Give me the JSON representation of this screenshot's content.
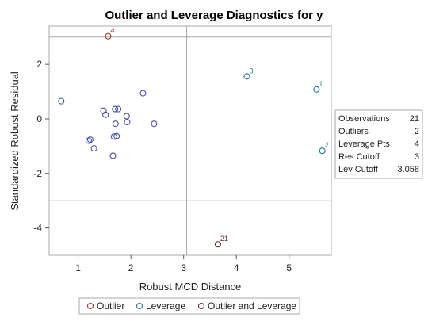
{
  "colors": {
    "normal": "#4a4fb0",
    "outlier": "#a23a2c",
    "leverage": "#1f7a8c",
    "outlier_and_leverage": "#6b2a2a",
    "ref_line": "#a8a8a8",
    "frame": "#a8a8a8"
  },
  "chart_data": {
    "type": "scatter",
    "title": "Outlier and Leverage Diagnostics for y",
    "xlabel": "Robust MCD Distance",
    "ylabel": "Standardized Robust Residual",
    "xlim": [
      0.45,
      5.8
    ],
    "ylim": [
      -5.0,
      3.4
    ],
    "xticks": [
      1,
      2,
      3,
      4,
      5
    ],
    "yticks": [
      -4,
      -2,
      0,
      2
    ],
    "ref_lines": {
      "y": [
        3,
        -3
      ],
      "x": [
        3.058
      ]
    },
    "grid": false,
    "points": [
      {
        "x": 5.52,
        "y": 1.08,
        "type": "leverage",
        "label": "1"
      },
      {
        "x": 5.63,
        "y": -1.17,
        "type": "leverage",
        "label": "2"
      },
      {
        "x": 4.2,
        "y": 1.56,
        "type": "leverage",
        "label": "3"
      },
      {
        "x": 1.57,
        "y": 3.03,
        "type": "outlier",
        "label": "4"
      },
      {
        "x": 3.65,
        "y": -4.6,
        "type": "outlier_and_leverage",
        "label": "21"
      },
      {
        "x": 0.68,
        "y": 0.65,
        "type": "normal",
        "label": ""
      },
      {
        "x": 1.48,
        "y": 0.3,
        "type": "normal",
        "label": ""
      },
      {
        "x": 1.52,
        "y": 0.15,
        "type": "normal",
        "label": ""
      },
      {
        "x": 1.2,
        "y": -0.8,
        "type": "normal",
        "label": ""
      },
      {
        "x": 1.23,
        "y": -0.76,
        "type": "normal",
        "label": ""
      },
      {
        "x": 1.3,
        "y": -1.08,
        "type": "normal",
        "label": ""
      },
      {
        "x": 1.66,
        "y": -1.35,
        "type": "normal",
        "label": ""
      },
      {
        "x": 1.7,
        "y": 0.36,
        "type": "normal",
        "label": ""
      },
      {
        "x": 1.76,
        "y": 0.36,
        "type": "normal",
        "label": ""
      },
      {
        "x": 1.71,
        "y": -0.18,
        "type": "normal",
        "label": ""
      },
      {
        "x": 1.68,
        "y": -0.65,
        "type": "normal",
        "label": ""
      },
      {
        "x": 1.73,
        "y": -0.63,
        "type": "normal",
        "label": ""
      },
      {
        "x": 1.92,
        "y": 0.1,
        "type": "normal",
        "label": ""
      },
      {
        "x": 1.93,
        "y": -0.12,
        "type": "normal",
        "label": ""
      },
      {
        "x": 2.23,
        "y": 0.94,
        "type": "normal",
        "label": ""
      },
      {
        "x": 2.44,
        "y": -0.18,
        "type": "normal",
        "label": ""
      }
    ],
    "stats": [
      {
        "name": "Observations",
        "value": "21"
      },
      {
        "name": "Outliers",
        "value": "2"
      },
      {
        "name": "Leverage Pts",
        "value": "4"
      },
      {
        "name": "Res Cutoff",
        "value": "3"
      },
      {
        "name": "Lev Cutoff",
        "value": "3.058"
      }
    ],
    "legend_placement": "bottom",
    "legend": [
      {
        "type": "outlier",
        "label": "Outlier"
      },
      {
        "type": "leverage",
        "label": "Leverage"
      },
      {
        "type": "outlier_and_leverage",
        "label": "Outlier and Leverage"
      }
    ]
  }
}
